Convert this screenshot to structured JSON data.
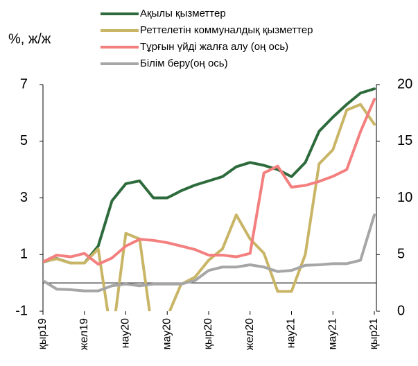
{
  "chart_data": {
    "type": "line",
    "y_label": "%, ж/ж",
    "categories": [
      "қыр19",
      null,
      null,
      "жел19",
      null,
      null,
      "нау20",
      null,
      null,
      "мау20",
      null,
      null,
      "қыр20",
      null,
      null,
      "жел20",
      null,
      null,
      "нау21",
      null,
      null,
      "мау21",
      null,
      null,
      "қыр21"
    ],
    "series": [
      {
        "name": "Ақылы қызметтер",
        "color": "#2e6b3c",
        "values": [
          0.74,
          0.86,
          0.7,
          0.7,
          1.3,
          2.9,
          3.5,
          3.6,
          3.0,
          3.0,
          3.25,
          3.45,
          3.6,
          3.75,
          4.1,
          4.25,
          4.15,
          4.0,
          3.75,
          4.25,
          5.35,
          5.85,
          6.3,
          6.7,
          6.85
        ]
      },
      {
        "name": "Реттелетін коммуналдық қызметтер",
        "color": "#c9b566",
        "values": [
          0.75,
          0.85,
          0.7,
          0.7,
          1.2,
          -2.0,
          1.75,
          1.55,
          -2.0,
          -1.2,
          -0.05,
          0.2,
          0.8,
          1.2,
          2.4,
          1.55,
          1.05,
          -0.3,
          -0.3,
          1.0,
          4.2,
          4.7,
          6.1,
          6.3,
          5.6
        ]
      },
      {
        "name": "Тұрғын үйді жалға алу (оң ось)",
        "color": "#f47f7f",
        "axis": "y2",
        "values": [
          4.35,
          4.95,
          4.8,
          5.1,
          4.15,
          4.7,
          5.75,
          6.35,
          6.25,
          6.05,
          5.75,
          5.45,
          4.95,
          4.95,
          4.8,
          5.1,
          12.2,
          12.8,
          10.95,
          11.1,
          11.45,
          11.9,
          12.5,
          15.85,
          18.7
        ]
      },
      {
        "name": "Білім беру(оң ось)",
        "color": "#a6a6a6",
        "axis": "y2",
        "values": [
          2.7,
          1.95,
          1.9,
          1.8,
          1.8,
          2.25,
          2.4,
          2.25,
          2.4,
          2.4,
          2.4,
          2.7,
          3.6,
          3.9,
          3.9,
          4.1,
          3.9,
          3.5,
          3.6,
          4.05,
          4.1,
          4.2,
          4.2,
          4.5,
          8.5
        ]
      }
    ],
    "ylim": [
      -1,
      7
    ],
    "yticks": [
      -1,
      1,
      3,
      5,
      7
    ],
    "y2lim": [
      0,
      20
    ],
    "y2ticks": [
      0,
      5,
      10,
      15,
      20
    ],
    "grid": false,
    "legend": "top"
  }
}
